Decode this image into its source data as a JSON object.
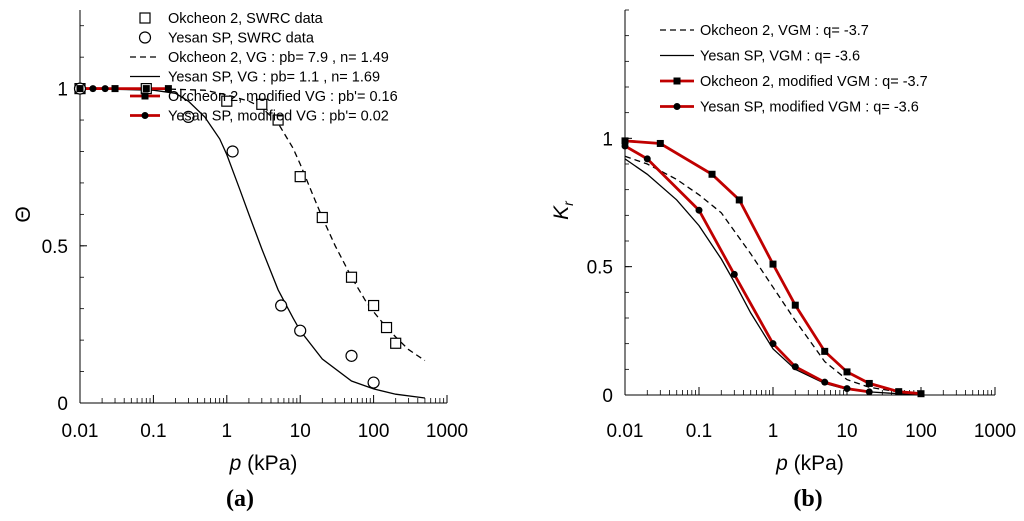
{
  "chart_data": [
    {
      "type": "line",
      "panel_label": "(a)",
      "xlabel_sym": "p",
      "xlabel_unit": " (kPa)",
      "ylabel": "Θ",
      "x_scale": "log",
      "xlim": [
        0.01,
        1000
      ],
      "ylim": [
        0,
        1.25
      ],
      "x_ticks": [
        0.01,
        0.1,
        1,
        10,
        100,
        1000
      ],
      "x_tick_labels": [
        "0.01",
        "0.1",
        "1",
        "10",
        "100",
        "1000"
      ],
      "y_ticks": [
        0,
        0.5,
        1
      ],
      "y_tick_labels": [
        "0",
        "0.5",
        "1"
      ],
      "grid": false,
      "legend_position": "top-right",
      "series": [
        {
          "name": "Okcheon 2, SWRC data",
          "style": "open-square",
          "x": [
            0.01,
            0.08,
            1,
            3,
            5,
            10,
            20,
            50,
            100,
            150,
            200
          ],
          "y": [
            1,
            1,
            0.96,
            0.95,
            0.9,
            0.72,
            0.59,
            0.4,
            0.31,
            0.24,
            0.19
          ]
        },
        {
          "name": "Yesan SP, SWRC data",
          "style": "open-circle",
          "x": [
            0.01,
            0.3,
            1.2,
            5.5,
            10,
            50,
            100
          ],
          "y": [
            1,
            0.91,
            0.8,
            0.31,
            0.23,
            0.15,
            0.065
          ]
        },
        {
          "name": "Okcheon 2, VG : pb= 7.9 , n= 1.49",
          "style": "dashed",
          "x": [
            0.01,
            0.1,
            0.5,
            1,
            2,
            3,
            5,
            8,
            10,
            15,
            20,
            30,
            50,
            80,
            100,
            150,
            200,
            300,
            500
          ],
          "y": [
            1,
            1,
            0.995,
            0.98,
            0.96,
            0.94,
            0.89,
            0.81,
            0.76,
            0.66,
            0.59,
            0.5,
            0.4,
            0.32,
            0.29,
            0.24,
            0.21,
            0.17,
            0.135
          ]
        },
        {
          "name": "Yesan SP, VG : pb= 1.1 , n= 1.69",
          "style": "solid",
          "x": [
            0.01,
            0.1,
            0.2,
            0.3,
            0.5,
            0.8,
            1,
            1.5,
            2,
            3,
            5,
            8,
            10,
            20,
            50,
            100,
            200,
            500
          ],
          "y": [
            1,
            0.995,
            0.985,
            0.96,
            0.91,
            0.84,
            0.79,
            0.68,
            0.6,
            0.49,
            0.36,
            0.27,
            0.23,
            0.14,
            0.07,
            0.045,
            0.028,
            0.016
          ]
        },
        {
          "name": "Okcheon 2, modified VG : pb'= 0.16",
          "style": "red-square",
          "x": [
            0.01,
            0.03,
            0.08,
            0.16
          ],
          "y": [
            1,
            1,
            1,
            1
          ]
        },
        {
          "name": "Yesan SP, modified VG : pb'= 0.02",
          "style": "red-circle",
          "x": [
            0.01,
            0.015,
            0.022
          ],
          "y": [
            1,
            1,
            1
          ]
        }
      ]
    },
    {
      "type": "line",
      "panel_label": "(b)",
      "xlabel_sym": "p",
      "xlabel_unit": " (kPa)",
      "ylabel_sym": "K",
      "ylabel_sub": "r",
      "x_scale": "log",
      "xlim": [
        0.01,
        1000
      ],
      "ylim": [
        0,
        1.5
      ],
      "x_ticks": [
        0.01,
        0.1,
        1,
        10,
        100,
        1000
      ],
      "x_tick_labels": [
        "0.01",
        "0.1",
        "1",
        "10",
        "100",
        "1000"
      ],
      "y_ticks": [
        0,
        0.5,
        1
      ],
      "y_tick_labels": [
        "0",
        "0.5",
        "1"
      ],
      "grid": false,
      "legend_position": "top-right",
      "series": [
        {
          "name": "Okcheon 2, VGM : q= -3.7",
          "style": "dashed",
          "x": [
            0.01,
            0.02,
            0.05,
            0.1,
            0.2,
            0.5,
            1,
            2,
            5,
            10,
            20,
            50,
            100
          ],
          "y": [
            0.93,
            0.9,
            0.84,
            0.78,
            0.71,
            0.55,
            0.42,
            0.29,
            0.13,
            0.06,
            0.03,
            0.012,
            0.006
          ]
        },
        {
          "name": "Yesan SP, VGM : q= -3.6",
          "style": "solid",
          "x": [
            0.01,
            0.02,
            0.05,
            0.1,
            0.2,
            0.3,
            0.5,
            1,
            2,
            5,
            10,
            20,
            50,
            100
          ],
          "y": [
            0.92,
            0.86,
            0.76,
            0.66,
            0.53,
            0.44,
            0.32,
            0.18,
            0.1,
            0.045,
            0.022,
            0.012,
            0.005,
            0.003
          ]
        },
        {
          "name": "Okcheon 2, modified VGM : q= -3.7",
          "style": "red-square",
          "x": [
            0.01,
            0.03,
            0.15,
            0.35,
            1,
            2,
            5,
            10,
            20,
            50,
            100
          ],
          "y": [
            0.99,
            0.98,
            0.86,
            0.76,
            0.51,
            0.35,
            0.17,
            0.09,
            0.045,
            0.013,
            0.005
          ]
        },
        {
          "name": "Yesan SP, modified VGM : q= -3.6",
          "style": "red-circle",
          "x": [
            0.01,
            0.02,
            0.1,
            0.3,
            1,
            2,
            5,
            10,
            20
          ],
          "y": [
            0.97,
            0.92,
            0.72,
            0.47,
            0.2,
            0.11,
            0.05,
            0.025,
            0.012
          ]
        }
      ]
    }
  ]
}
